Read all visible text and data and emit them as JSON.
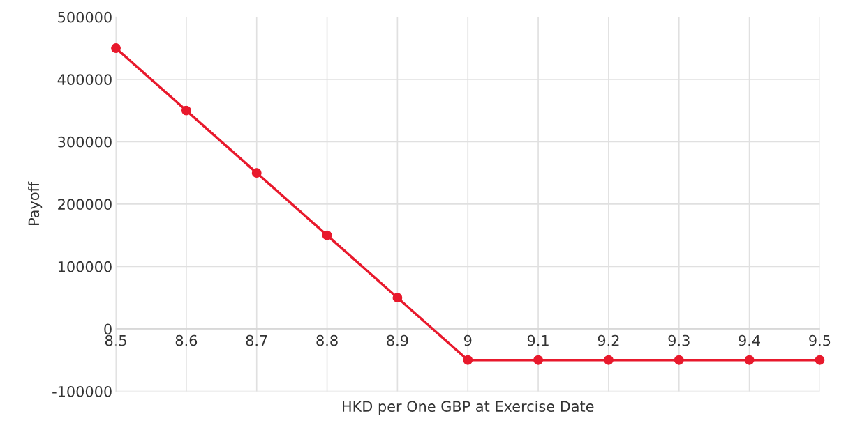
{
  "chart_data": {
    "type": "line",
    "xlabel": "HKD per One GBP at Exercise Date",
    "ylabel": "Payoff",
    "x": [
      8.5,
      8.6,
      8.7,
      8.8,
      8.9,
      9,
      9.1,
      9.2,
      9.3,
      9.4,
      9.5
    ],
    "series": [
      {
        "color": "#e8192c",
        "values": [
          450000,
          350000,
          250000,
          150000,
          50000,
          -50000,
          -50000,
          -50000,
          -50000,
          -50000,
          -50000
        ]
      }
    ],
    "xlim": [
      8.5,
      9.5
    ],
    "xticks": [
      8.5,
      8.6,
      8.7,
      8.8,
      8.9,
      9,
      9.1,
      9.2,
      9.3,
      9.4,
      9.5
    ],
    "ylim": [
      -100000,
      500000
    ],
    "yticks": [
      -100000,
      0,
      100000,
      200000,
      300000,
      400000,
      500000
    ],
    "grid": true,
    "marker": "circle",
    "line_style": "solid"
  }
}
